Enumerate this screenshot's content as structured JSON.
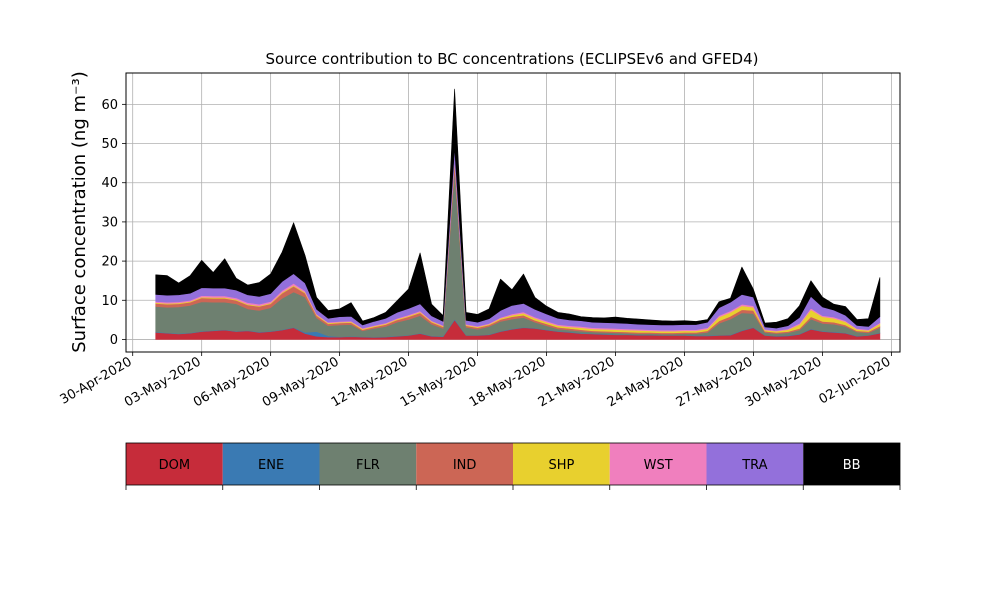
{
  "chart_data": {
    "type": "area",
    "title": "Source contribution to BC concentrations (ECLIPSEv6 and GFED4)",
    "xlabel": "",
    "ylabel": "Surface concentration (ng m⁻³)",
    "ylim": [
      -3.2,
      68
    ],
    "xlim": [
      "2020-04-29T17:00",
      "2020-06-02T09:00"
    ],
    "y_ticks": [
      0,
      10,
      20,
      30,
      40,
      50,
      60
    ],
    "x_tick_labels": [
      "30-Apr-2020",
      "03-May-2020",
      "06-May-2020",
      "09-May-2020",
      "12-May-2020",
      "15-May-2020",
      "18-May-2020",
      "21-May-2020",
      "24-May-2020",
      "27-May-2020",
      "30-May-2020",
      "02-Jun-2020"
    ],
    "x_tick_dates": [
      "2020-04-30",
      "2020-05-03",
      "2020-05-06",
      "2020-05-09",
      "2020-05-12",
      "2020-05-15",
      "2020-05-18",
      "2020-05-21",
      "2020-05-24",
      "2020-05-27",
      "2020-05-30",
      "2020-06-02"
    ],
    "grid": true,
    "stacked": true,
    "x": [
      "2020-05-01",
      "2020-05-01T12:00",
      "2020-05-02",
      "2020-05-02T12:00",
      "2020-05-03",
      "2020-05-03T12:00",
      "2020-05-04",
      "2020-05-04T12:00",
      "2020-05-05",
      "2020-05-05T12:00",
      "2020-05-06",
      "2020-05-06T12:00",
      "2020-05-07",
      "2020-05-07T12:00",
      "2020-05-08",
      "2020-05-08T12:00",
      "2020-05-09",
      "2020-05-09T12:00",
      "2020-05-10",
      "2020-05-10T12:00",
      "2020-05-11",
      "2020-05-11T12:00",
      "2020-05-12",
      "2020-05-12T12:00",
      "2020-05-13",
      "2020-05-13T12:00",
      "2020-05-14",
      "2020-05-14T12:00",
      "2020-05-15",
      "2020-05-15T12:00",
      "2020-05-16",
      "2020-05-16T12:00",
      "2020-05-17",
      "2020-05-17T12:00",
      "2020-05-18",
      "2020-05-18T12:00",
      "2020-05-19",
      "2020-05-19T12:00",
      "2020-05-20",
      "2020-05-20T12:00",
      "2020-05-21",
      "2020-05-21T12:00",
      "2020-05-22",
      "2020-05-22T12:00",
      "2020-05-23",
      "2020-05-23T12:00",
      "2020-05-24",
      "2020-05-24T12:00",
      "2020-05-25",
      "2020-05-25T12:00",
      "2020-05-26",
      "2020-05-26T12:00",
      "2020-05-27",
      "2020-05-27T12:00",
      "2020-05-28",
      "2020-05-28T12:00",
      "2020-05-29",
      "2020-05-29T12:00",
      "2020-05-30",
      "2020-05-30T12:00",
      "2020-05-31",
      "2020-05-31T12:00",
      "2020-06-01",
      "2020-06-01T12:00"
    ],
    "series": [
      {
        "name": "DOM",
        "color": "#c62c3a",
        "values": [
          1.8,
          1.6,
          1.4,
          1.6,
          2.0,
          2.2,
          2.4,
          2.0,
          2.2,
          1.8,
          2.0,
          2.4,
          3.0,
          1.5,
          0.8,
          0.6,
          0.6,
          0.7,
          0.6,
          0.5,
          0.6,
          0.8,
          1.0,
          1.5,
          0.8,
          0.7,
          5.0,
          1.0,
          1.0,
          1.2,
          2.0,
          2.6,
          3.0,
          2.8,
          2.4,
          2.0,
          1.8,
          1.5,
          1.4,
          1.3,
          1.2,
          1.2,
          1.1,
          1.1,
          1.0,
          1.0,
          1.0,
          0.9,
          0.9,
          1.0,
          1.1,
          2.2,
          3.0,
          1.0,
          0.8,
          0.9,
          1.3,
          2.6,
          2.0,
          1.8,
          1.6,
          0.8,
          1.0,
          1.6
        ]
      },
      {
        "name": "ENE",
        "color": "#3a7ab3",
        "values": [
          0.1,
          0.1,
          0.1,
          0.1,
          0.1,
          0.1,
          0.1,
          0.1,
          0.1,
          0.1,
          0.1,
          0.1,
          0.1,
          0.3,
          1.2,
          0.3,
          0.1,
          0.1,
          0.1,
          0.1,
          0.1,
          0.1,
          0.1,
          0.1,
          0.1,
          0.1,
          0.2,
          0.1,
          0.1,
          0.1,
          0.1,
          0.1,
          0.1,
          0.1,
          0.1,
          0.1,
          0.1,
          0.1,
          0.1,
          0.1,
          0.1,
          0.1,
          0.1,
          0.1,
          0.1,
          0.1,
          0.1,
          0.1,
          0.1,
          0.1,
          0.1,
          0.1,
          0.1,
          0.1,
          0.1,
          0.1,
          0.1,
          0.1,
          0.1,
          0.1,
          0.1,
          0.1,
          0.1,
          0.1
        ]
      },
      {
        "name": "FLR",
        "color": "#6e8070",
        "values": [
          6.5,
          6.5,
          6.8,
          7.0,
          7.5,
          7.2,
          7.0,
          7.0,
          5.5,
          5.5,
          6.0,
          8.0,
          9.0,
          9.0,
          3.5,
          2.6,
          3.0,
          3.0,
          1.5,
          2.2,
          2.6,
          3.5,
          4.0,
          4.5,
          3.0,
          2.0,
          38.0,
          2.0,
          1.5,
          2.0,
          2.5,
          2.5,
          2.5,
          1.5,
          1.0,
          0.6,
          0.5,
          0.5,
          0.4,
          0.4,
          0.4,
          0.3,
          0.3,
          0.3,
          0.3,
          0.3,
          0.4,
          0.5,
          0.8,
          3.0,
          4.0,
          4.5,
          3.5,
          0.7,
          0.6,
          0.7,
          1.0,
          2.5,
          2.0,
          2.0,
          1.6,
          1.0,
          0.6,
          1.3
        ]
      },
      {
        "name": "IND",
        "color": "#cc6655",
        "values": [
          0.8,
          0.8,
          0.8,
          0.8,
          1.0,
          1.0,
          1.0,
          0.9,
          1.0,
          1.0,
          1.0,
          1.3,
          1.5,
          1.0,
          0.6,
          0.5,
          0.5,
          0.5,
          0.3,
          0.4,
          0.5,
          0.6,
          0.7,
          0.7,
          0.5,
          0.4,
          2.0,
          0.4,
          0.4,
          0.4,
          0.5,
          0.6,
          0.6,
          0.5,
          0.5,
          0.4,
          0.4,
          0.4,
          0.3,
          0.3,
          0.3,
          0.3,
          0.3,
          0.3,
          0.3,
          0.3,
          0.3,
          0.3,
          0.4,
          0.6,
          0.7,
          0.8,
          0.8,
          0.3,
          0.3,
          0.3,
          0.4,
          0.6,
          0.5,
          0.5,
          0.4,
          0.3,
          0.3,
          0.4
        ]
      },
      {
        "name": "SHP",
        "color": "#e8d02e",
        "values": [
          0.2,
          0.2,
          0.2,
          0.2,
          0.2,
          0.2,
          0.2,
          0.2,
          0.2,
          0.2,
          0.2,
          0.2,
          0.2,
          0.2,
          0.2,
          0.2,
          0.2,
          0.2,
          0.2,
          0.2,
          0.2,
          0.2,
          0.2,
          0.2,
          0.2,
          0.2,
          0.3,
          0.2,
          0.2,
          0.2,
          0.3,
          0.4,
          0.5,
          0.5,
          0.4,
          0.4,
          0.4,
          0.5,
          0.5,
          0.5,
          0.5,
          0.5,
          0.5,
          0.4,
          0.4,
          0.4,
          0.4,
          0.4,
          0.5,
          1.0,
          1.0,
          1.0,
          0.8,
          0.3,
          0.3,
          0.5,
          1.0,
          1.8,
          1.2,
          1.0,
          0.8,
          0.4,
          0.3,
          0.6
        ]
      },
      {
        "name": "WST",
        "color": "#f07fbe",
        "values": [
          0.3,
          0.3,
          0.3,
          0.3,
          0.4,
          0.4,
          0.4,
          0.4,
          0.4,
          0.4,
          0.4,
          0.5,
          0.5,
          0.4,
          0.2,
          0.2,
          0.2,
          0.2,
          0.2,
          0.2,
          0.2,
          0.2,
          0.3,
          0.3,
          0.2,
          0.2,
          0.4,
          0.2,
          0.2,
          0.2,
          0.2,
          0.3,
          0.3,
          0.3,
          0.3,
          0.3,
          0.3,
          0.3,
          0.3,
          0.3,
          0.3,
          0.3,
          0.3,
          0.3,
          0.3,
          0.3,
          0.3,
          0.3,
          0.3,
          0.4,
          0.4,
          0.4,
          0.4,
          0.2,
          0.2,
          0.2,
          0.3,
          0.4,
          0.3,
          0.3,
          0.3,
          0.2,
          0.2,
          0.3
        ]
      },
      {
        "name": "TRA",
        "color": "#9370db",
        "values": [
          1.8,
          1.8,
          1.8,
          1.8,
          2.0,
          2.0,
          2.0,
          2.0,
          2.0,
          2.0,
          2.0,
          2.3,
          2.5,
          2.0,
          1.2,
          1.0,
          1.2,
          1.2,
          0.8,
          1.0,
          1.2,
          1.5,
          1.6,
          1.8,
          1.2,
          1.0,
          3.0,
          1.0,
          1.0,
          1.2,
          1.8,
          2.2,
          2.2,
          2.0,
          1.8,
          1.6,
          1.5,
          1.5,
          1.4,
          1.4,
          1.4,
          1.4,
          1.3,
          1.3,
          1.3,
          1.3,
          1.3,
          1.3,
          1.4,
          2.0,
          2.2,
          2.5,
          2.2,
          0.6,
          0.6,
          0.8,
          1.5,
          3.0,
          2.2,
          1.8,
          1.4,
          0.8,
          0.8,
          1.5
        ]
      },
      {
        "name": "BB",
        "color": "#000000",
        "values": [
          5.0,
          5.0,
          3.0,
          4.5,
          7.0,
          4.0,
          7.5,
          3.0,
          2.5,
          3.5,
          5.0,
          7.5,
          13.0,
          7.0,
          3.0,
          2.0,
          2.0,
          3.5,
          1.0,
          1.0,
          1.5,
          3.0,
          5.0,
          13.0,
          3.0,
          1.5,
          15.0,
          2.0,
          2.0,
          2.5,
          8.0,
          4.0,
          7.5,
          3.0,
          2.0,
          1.5,
          1.5,
          1.0,
          1.2,
          1.2,
          1.5,
          1.3,
          1.3,
          1.2,
          1.1,
          1.0,
          1.0,
          0.8,
          0.7,
          1.5,
          1.0,
          7.0,
          2.0,
          1.0,
          1.5,
          1.8,
          3.0,
          4.0,
          2.5,
          1.5,
          2.2,
          1.5,
          2.0,
          10.0
        ]
      }
    ],
    "legend": {
      "placement": "bottom",
      "entries": [
        {
          "label": "DOM",
          "color": "#c62c3a",
          "text_color": "#000000"
        },
        {
          "label": "ENE",
          "color": "#3a7ab3",
          "text_color": "#000000"
        },
        {
          "label": "FLR",
          "color": "#6e8070",
          "text_color": "#000000"
        },
        {
          "label": "IND",
          "color": "#cc6655",
          "text_color": "#000000"
        },
        {
          "label": "SHP",
          "color": "#e8d02e",
          "text_color": "#000000"
        },
        {
          "label": "WST",
          "color": "#f07fbe",
          "text_color": "#000000"
        },
        {
          "label": "TRA",
          "color": "#9370db",
          "text_color": "#000000"
        },
        {
          "label": "BB",
          "color": "#000000",
          "text_color": "#ffffff"
        }
      ]
    }
  }
}
